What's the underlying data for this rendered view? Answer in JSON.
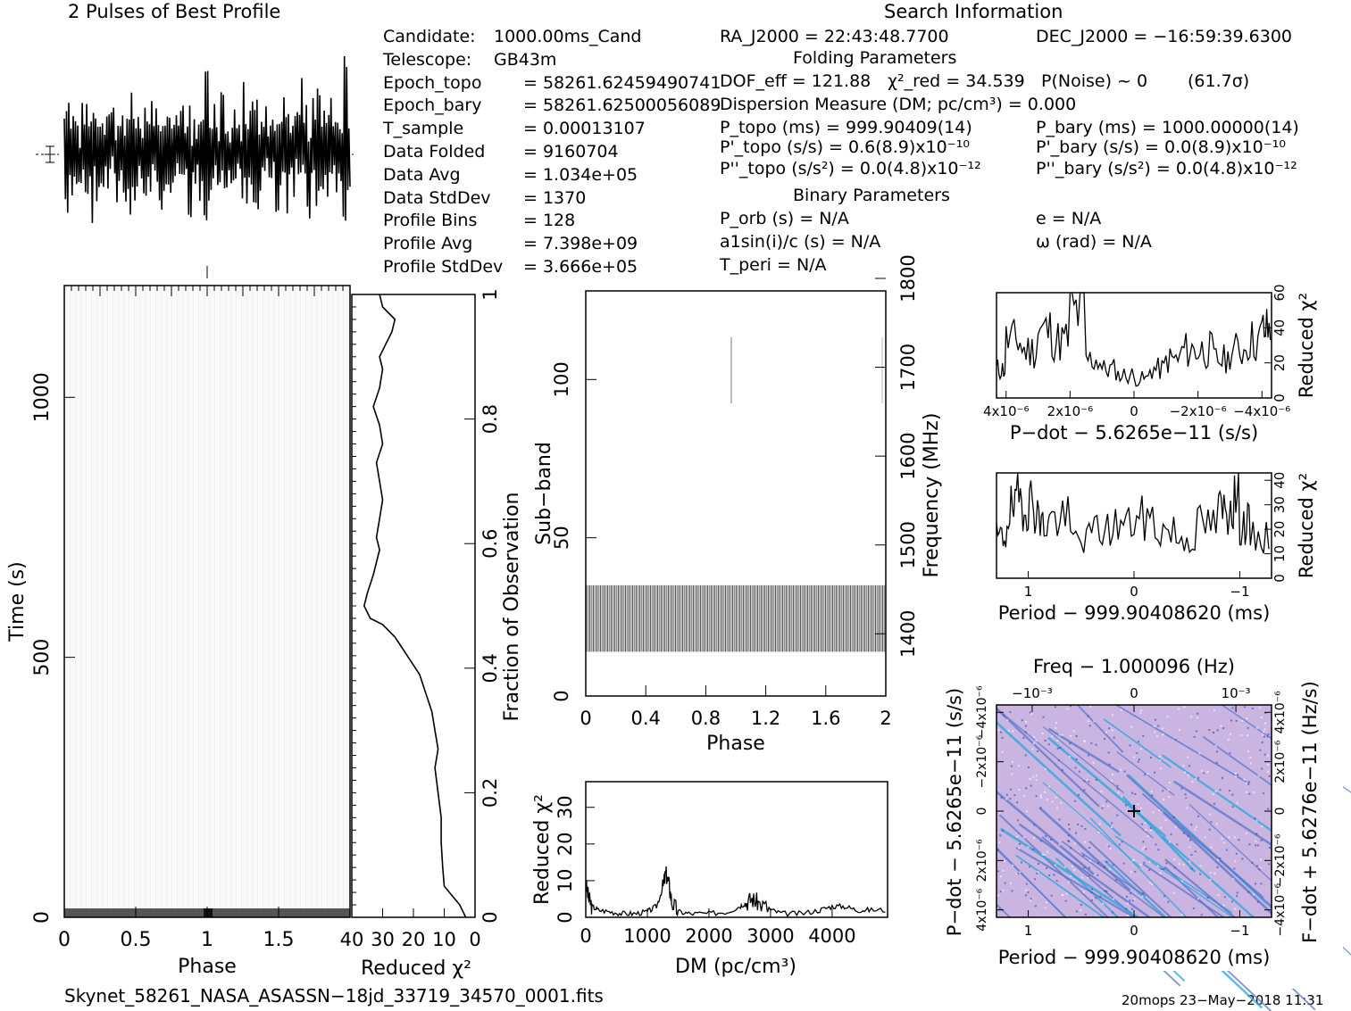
{
  "header": {
    "profile_title": "2 Pulses of Best Profile",
    "search_title": "Search Information",
    "folding_title": "Folding Parameters",
    "binary_title": "Binary Parameters"
  },
  "info_left": [
    {
      "label": "Candidate:",
      "value": "1000.00ms_Cand"
    },
    {
      "label": "Telescope:",
      "value": "GB43m"
    },
    {
      "label": "Epoch_topo",
      "value": "= 58261.62459490741"
    },
    {
      "label": "Epoch_bary",
      "value": "= 58261.62500056089"
    },
    {
      "label": "T_sample",
      "value": "= 0.00013107"
    },
    {
      "label": "Data Folded",
      "value": "= 9160704"
    },
    {
      "label": "Data Avg",
      "value": "= 1.034e+05"
    },
    {
      "label": "Data StdDev",
      "value": "= 1370"
    },
    {
      "label": "Profile Bins",
      "value": "= 128"
    },
    {
      "label": "Profile Avg",
      "value": "= 7.398e+09"
    },
    {
      "label": "Profile StdDev",
      "value": "= 3.666e+05"
    }
  ],
  "info_mid": {
    "ra": "RA_J2000 = 22:43:48.7700",
    "dof": "DOF_eff = 121.88",
    "chi2": "χ²_red = 34.539",
    "pnoise": "P(Noise) ~ 0",
    "sigma": "(61.7σ)",
    "dm": "Dispersion Measure (DM; pc/cm³) = 0.000",
    "ptopo": "P_topo (ms) = 999.90409(14)",
    "pdtopo": "P'_topo (s/s) = 0.6(8.9)x10⁻¹⁰",
    "pddtopo": "P''_topo (s/s²) = 0.0(4.8)x10⁻¹²",
    "porb": "P_orb (s) = N/A",
    "a1": "a1sin(i)/c (s) = N/A",
    "tperi": "T_peri = N/A"
  },
  "info_right": {
    "dec": "DEC_J2000 = −16:59:39.6300",
    "pbary": "P_bary (ms) = 1000.00000(14)",
    "pdbary": "P'_bary (s/s) = 0.0(8.9)x10⁻¹⁰",
    "pddbary": "P''_bary (s/s²) = 0.0(4.8)x10⁻¹²",
    "ecc": "e = N/A",
    "omega": "ω (rad) = N/A"
  },
  "footer": {
    "filename": "Skynet_58261_NASA_ASASSN−18jd_33719_34570_0001.fits",
    "stamp": "20mops 23−May−2018 11:31"
  },
  "chart_data": [
    {
      "id": "time-phase",
      "type": "heatmap",
      "xlabel": "Phase",
      "ylabel": "Time (s)",
      "x_ticks": [
        "0",
        "0.5",
        "1",
        "1.5"
      ],
      "x_tick_values": [
        0,
        0.5,
        1,
        1.5
      ],
      "y_ticks": [
        "0",
        "500",
        "1000"
      ],
      "y_tick_values": [
        0,
        500,
        1000
      ],
      "xlim": [
        0,
        2
      ],
      "ylim": [
        0,
        1215
      ]
    },
    {
      "id": "time-chi2",
      "type": "line",
      "xlabel": "Reduced χ²",
      "ylabel": "Fraction of Observation",
      "x_ticks": [
        "40",
        "30",
        "20",
        "10",
        "0"
      ],
      "x_tick_values": [
        40,
        30,
        20,
        10,
        0
      ],
      "y_ticks": [
        "0",
        "0.2",
        "0.4",
        "0.6",
        "0.8",
        "1"
      ],
      "y_tick_values": [
        0,
        0.2,
        0.4,
        0.6,
        0.8,
        1
      ],
      "xlim": [
        40,
        0
      ],
      "ylim": [
        0,
        1
      ],
      "x": [
        3,
        5,
        10,
        10.5,
        11,
        11,
        12,
        13,
        12,
        13,
        14,
        16,
        18,
        22,
        26,
        30,
        34,
        36,
        35,
        33,
        32,
        31,
        32,
        31,
        30,
        31,
        32,
        30,
        31,
        33,
        31,
        30,
        31,
        29,
        27,
        26,
        30,
        31
      ],
      "y": [
        0.0,
        0.02,
        0.05,
        0.08,
        0.12,
        0.16,
        0.2,
        0.24,
        0.27,
        0.3,
        0.33,
        0.36,
        0.39,
        0.42,
        0.45,
        0.47,
        0.48,
        0.5,
        0.52,
        0.55,
        0.57,
        0.59,
        0.61,
        0.64,
        0.67,
        0.7,
        0.73,
        0.76,
        0.79,
        0.82,
        0.85,
        0.88,
        0.9,
        0.92,
        0.94,
        0.96,
        0.98,
        1.0
      ]
    },
    {
      "id": "subband-phase",
      "type": "heatmap",
      "xlabel": "Phase",
      "ylabel": "Sub−band",
      "y2label": "Frequency (MHz)",
      "x_ticks": [
        "0",
        "0.4",
        "0.8",
        "1.2",
        "1.6",
        "2"
      ],
      "x_tick_values": [
        0,
        0.4,
        0.8,
        1.2,
        1.6,
        2
      ],
      "y_ticks": [
        "0",
        "50",
        "100"
      ],
      "y_tick_values": [
        0,
        50,
        100
      ],
      "y2_ticks": [
        "1400",
        "1500",
        "1600",
        "1700",
        "1800"
      ],
      "y2_tick_values": [
        1400,
        1500,
        1600,
        1700,
        1800
      ],
      "xlim": [
        0,
        2
      ],
      "ylim": [
        0,
        128
      ],
      "y2lim": [
        1330,
        1800
      ],
      "band_subbands": [
        14,
        35
      ]
    },
    {
      "id": "dm-chi2",
      "type": "line",
      "xlabel": "DM (pc/cm³)",
      "ylabel": "Reduced χ²",
      "x_ticks": [
        "0",
        "1000",
        "2000",
        "3000",
        "4000"
      ],
      "x_tick_values": [
        0,
        1000,
        2000,
        3000,
        4000
      ],
      "y_ticks": [
        "0",
        "10",
        "20",
        "30"
      ],
      "y_tick_values": [
        0,
        10,
        20,
        30
      ],
      "xlim": [
        0,
        4900
      ],
      "ylim": [
        0,
        37
      ],
      "x": [
        0,
        50,
        100,
        200,
        400,
        600,
        800,
        1000,
        1150,
        1250,
        1300,
        1350,
        1400,
        1500,
        1700,
        2000,
        2300,
        2500,
        2600,
        2700,
        2800,
        3000,
        3200,
        3500,
        3800,
        4000,
        4200,
        4400,
        4600,
        4900
      ],
      "y": [
        9,
        5,
        3,
        2,
        1.5,
        1,
        1,
        1.5,
        3,
        8,
        12,
        9,
        4,
        1.5,
        1,
        1,
        1.5,
        3,
        4,
        5,
        4,
        2,
        1,
        1,
        2,
        3,
        3,
        2,
        2,
        2
      ]
    },
    {
      "id": "pdot-chi2",
      "type": "line",
      "xlabel": "P−dot − 5.6265e−11 (s/s)",
      "ylabel": "Reduced χ²",
      "x_ticks": [
        "4x10⁻⁶",
        "2x10⁻⁶",
        "0",
        "−2x10⁻⁶",
        "−4x10⁻⁶"
      ],
      "x_tick_values": [
        4,
        2,
        0,
        -2,
        -4
      ],
      "y_ticks": [
        "0",
        "20",
        "40",
        "60"
      ],
      "y_tick_values": [
        0,
        20,
        40,
        60
      ],
      "xlim": [
        4.3,
        -4.3
      ],
      "ylim": [
        0,
        60
      ],
      "x": [
        4.3,
        4.0,
        3.5,
        3.0,
        2.5,
        2.0,
        1.5,
        1.0,
        0.5,
        0,
        -0.5,
        -1.0,
        -1.5,
        -2.0,
        -2.5,
        -3.0,
        -3.5,
        -4.0,
        -4.3
      ],
      "y": [
        15,
        30,
        25,
        35,
        30,
        45,
        20,
        15,
        12,
        10,
        15,
        20,
        25,
        25,
        20,
        25,
        30,
        35,
        30
      ]
    },
    {
      "id": "period-chi2",
      "type": "line",
      "xlabel": "Period − 999.90408620 (ms)",
      "ylabel": "Reduced χ²",
      "x_ticks": [
        "1",
        "0",
        "−1"
      ],
      "x_tick_values": [
        1,
        0,
        -1
      ],
      "y_ticks": [
        "0",
        "10",
        "20",
        "30",
        "40"
      ],
      "y_tick_values": [
        0,
        10,
        20,
        30,
        40
      ],
      "xlim": [
        1.3,
        -1.3
      ],
      "ylim": [
        0,
        43
      ],
      "x": [
        1.3,
        1.2,
        1.1,
        1.0,
        0.9,
        0.8,
        0.6,
        0.4,
        0.2,
        0,
        -0.2,
        -0.4,
        -0.6,
        -0.8,
        -0.9,
        -1.0,
        -1.1,
        -1.3
      ],
      "y": [
        15,
        25,
        30,
        28,
        20,
        22,
        15,
        18,
        20,
        22,
        18,
        15,
        20,
        25,
        30,
        20,
        15,
        12
      ]
    },
    {
      "id": "pdot-period",
      "type": "heatmap",
      "xlabel": "Period − 999.90408620 (ms)",
      "ylabel": "P−dot − 5.6265e−11 (s/s)",
      "x2label": "Freq − 1.000096 (Hz)",
      "y2label": "F−dot + 5.6276e−11 (Hz/s)",
      "x_ticks": [
        "1",
        "0",
        "−1"
      ],
      "x_tick_values": [
        1,
        0,
        -1
      ],
      "x2_ticks": [
        "−10⁻³",
        "0",
        "10⁻³"
      ],
      "x2_tick_values": [
        -1,
        0,
        1
      ],
      "y_ticks": [
        "4x10⁻⁶",
        "2x10⁻⁶",
        "0",
        "−2x10⁻⁶",
        "−4x10⁻⁶"
      ],
      "y_tick_values": [
        4,
        2,
        0,
        -2,
        -4
      ],
      "y2_ticks": [
        "−4x10⁻⁶",
        "−2x10⁻⁶",
        "0",
        "2x10⁻⁶",
        "4x10⁻⁶"
      ],
      "y2_tick_values": [
        -4,
        -2,
        0,
        2,
        4
      ],
      "xlim": [
        1.3,
        -1.3
      ],
      "ylim": [
        4.3,
        -4.3
      ],
      "best_point": [
        0,
        0
      ]
    }
  ]
}
